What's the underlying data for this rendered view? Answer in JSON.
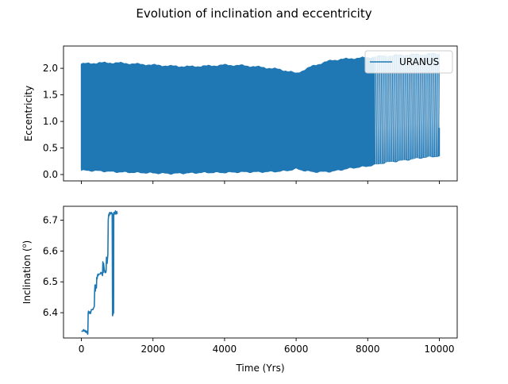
{
  "figure": {
    "title": "Evolution of inclination and eccentricity"
  },
  "chart_data": [
    {
      "type": "line",
      "ylabel": "Eccentricity",
      "xlabel": "",
      "xlim": [
        -500,
        10500
      ],
      "ylim": [
        -0.12,
        2.42
      ],
      "x_ticks": [
        0,
        2000,
        4000,
        6000,
        8000,
        10000
      ],
      "y_ticks": [
        0.0,
        0.5,
        1.0,
        1.5,
        2.0
      ],
      "y_tick_labels": [
        "0.0",
        "0.5",
        "1.0",
        "1.5",
        "2.0"
      ],
      "show_x_tick_labels": false,
      "legend": {
        "position": "top-right",
        "entries": [
          "URANUS"
        ]
      },
      "color": "#1f77b4",
      "series": [
        {
          "name": "URANUS",
          "envelope_x": [
            0,
            500,
            1000,
            1500,
            2000,
            2500,
            3000,
            3500,
            4000,
            4500,
            5000,
            5500,
            5800,
            6000,
            6200,
            6500,
            7000,
            7500,
            8000,
            8300,
            8500,
            9000,
            9500,
            10000
          ],
          "envelope_upper": [
            2.08,
            2.1,
            2.1,
            2.08,
            2.06,
            2.04,
            2.03,
            2.04,
            2.06,
            2.05,
            2.02,
            1.98,
            1.94,
            1.9,
            1.96,
            2.05,
            2.15,
            2.18,
            2.2,
            2.22,
            2.23,
            2.25,
            2.26,
            2.27
          ],
          "envelope_lower": [
            0.08,
            0.07,
            0.05,
            0.04,
            0.03,
            0.02,
            0.03,
            0.04,
            0.04,
            0.05,
            0.05,
            0.06,
            0.08,
            0.11,
            0.08,
            0.05,
            0.06,
            0.12,
            0.16,
            0.2,
            0.23,
            0.27,
            0.32,
            0.35
          ],
          "start": {
            "x": 0,
            "y": 0.1
          },
          "end": {
            "x": 10000,
            "y": 0.88
          }
        }
      ]
    },
    {
      "type": "line",
      "ylabel": "Inclination (",
      "ylabel_degree": "o",
      "ylabel_close": ")",
      "xlabel": "Time (Yrs)",
      "xlim": [
        -500,
        10500
      ],
      "ylim": [
        6.318,
        6.745
      ],
      "x_ticks": [
        0,
        2000,
        4000,
        6000,
        8000,
        10000
      ],
      "x_tick_labels": [
        "0",
        "2000",
        "4000",
        "6000",
        "8000",
        "10000"
      ],
      "y_ticks": [
        6.4,
        6.5,
        6.6,
        6.7
      ],
      "y_tick_labels": [
        "6.4",
        "6.5",
        "6.6",
        "6.7"
      ],
      "color": "#1f77b4",
      "series": [
        {
          "name": "URANUS",
          "x": [
            0,
            40,
            60,
            80,
            100,
            110,
            120,
            130,
            140,
            145,
            150,
            160,
            170,
            175,
            180,
            190,
            200,
            210,
            220,
            230,
            240,
            250,
            260,
            270,
            280,
            300,
            320,
            340,
            360,
            370,
            380,
            390,
            400,
            410,
            420,
            430,
            440,
            450,
            460,
            470,
            480,
            500,
            520,
            540,
            560,
            570,
            580,
            590,
            600,
            610,
            620,
            630,
            640,
            650,
            660,
            670,
            680,
            690,
            700,
            710,
            720,
            730,
            740,
            750,
            760,
            770,
            780,
            790,
            800,
            820,
            840,
            860,
            870,
            880,
            890,
            895,
            900,
            905,
            910,
            920,
            930,
            940,
            950,
            960,
            970,
            980,
            990,
            1000
          ],
          "y": [
            6.34,
            6.34,
            6.345,
            6.34,
            6.343,
            6.338,
            6.341,
            6.336,
            6.34,
            6.337,
            6.34,
            6.335,
            6.338,
            6.33,
            6.333,
            6.4,
            6.405,
            6.398,
            6.402,
            6.399,
            6.403,
            6.397,
            6.4,
            6.405,
            6.41,
            6.41,
            6.41,
            6.415,
            6.42,
            6.47,
            6.49,
            6.47,
            6.49,
            6.49,
            6.48,
            6.515,
            6.51,
            6.52,
            6.525,
            6.52,
            6.525,
            6.525,
            6.525,
            6.53,
            6.53,
            6.525,
            6.53,
            6.52,
            6.565,
            6.53,
            6.56,
            6.55,
            6.54,
            6.535,
            6.53,
            6.535,
            6.53,
            6.535,
            6.58,
            6.57,
            6.56,
            6.575,
            6.59,
            6.7,
            6.715,
            6.72,
            6.715,
            6.725,
            6.725,
            6.72,
            6.725,
            6.72,
            6.39,
            6.395,
            6.72,
            6.398,
            6.4,
            6.725,
            6.72,
            6.72,
            6.725,
            6.72,
            6.73,
            6.72,
            6.725,
            6.72,
            6.728,
            6.72
          ]
        }
      ]
    }
  ]
}
